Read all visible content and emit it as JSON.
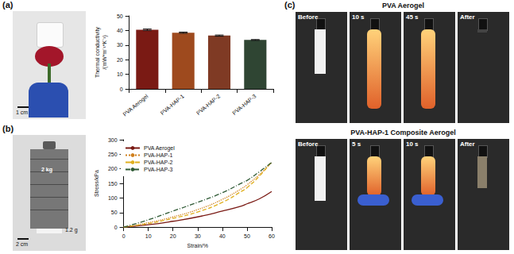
{
  "chart_data": [
    {
      "type": "bar",
      "ylabel": "Thermal conductivity /(mW*m⁻¹*K⁻¹)",
      "categories": [
        "PVA Aerogel",
        "PVA-HAP-1",
        "PVA-HAP-2",
        "PVA-HAP-3"
      ],
      "values": [
        40.5,
        38.5,
        36.5,
        33.5
      ],
      "errors": [
        0.5,
        0.4,
        0.4,
        0.3
      ],
      "colors": [
        "#7a1a14",
        "#9e4a1e",
        "#7f3a24",
        "#2f4533"
      ],
      "ylim": [
        0,
        50
      ],
      "yticks": [
        0,
        10,
        20,
        30,
        40,
        50
      ],
      "grid": false
    },
    {
      "type": "line",
      "xlabel": "Strain/%",
      "ylabel": "Stress/kPa",
      "x": [
        0,
        10,
        20,
        30,
        40,
        48,
        50,
        55,
        60
      ],
      "series": [
        {
          "name": "PVA Aerogel",
          "color": "#7a1a14",
          "line_style": "solid",
          "values": [
            0,
            8,
            20,
            35,
            55,
            73,
            80,
            97,
            122
          ]
        },
        {
          "name": "PVA-HAP-1",
          "color": "#d0801e",
          "line_style": "dotted",
          "values": [
            0,
            15,
            35,
            60,
            95,
            133,
            145,
            180,
            222
          ]
        },
        {
          "name": "PVA-HAP-2",
          "color": "#e0b020",
          "line_style": "dashed",
          "values": [
            0,
            12,
            30,
            52,
            85,
            124,
            135,
            175,
            225
          ]
        },
        {
          "name": "PVA-HAP-3",
          "color": "#2f5a35",
          "line_style": "dashdot",
          "values": [
            0,
            25,
            55,
            85,
            118,
            152,
            160,
            190,
            222
          ]
        }
      ],
      "xlim": [
        0,
        60
      ],
      "xticks": [
        0,
        10,
        20,
        30,
        40,
        50,
        60
      ],
      "ylim": [
        0,
        300
      ],
      "yticks": [
        0,
        50,
        100,
        150,
        200,
        250,
        300
      ],
      "legend": "upper left",
      "grid": false
    }
  ],
  "panel_labels": [
    "(a)",
    "(b)",
    "(c)"
  ],
  "photos": {
    "a": {
      "scale_bar": "1 cm"
    },
    "b": {
      "weight_label": "2 kg",
      "sample_label": "1.2 g",
      "scale_bar": "2 cm"
    },
    "c": [
      {
        "title": "PVA Aerogel",
        "frames": [
          "Before",
          "10 s",
          "45 s",
          "After"
        ]
      },
      {
        "title": "PVA-HAP-1 Composite Aerogel",
        "frames": [
          "Before",
          "5 s",
          "10 s",
          "After"
        ]
      }
    ]
  }
}
